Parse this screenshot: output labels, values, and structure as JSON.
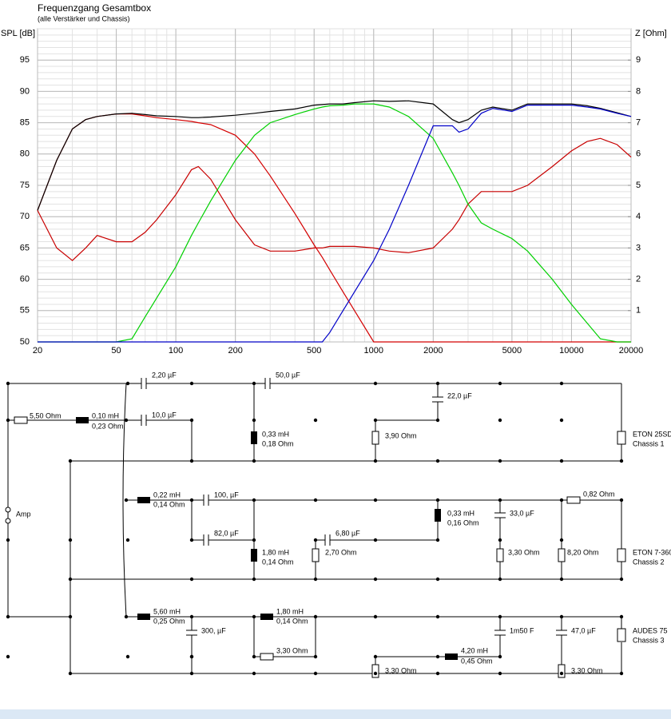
{
  "chart_data": {
    "type": "line",
    "title": "Frequenzgang Gesamtbox",
    "subtitle": "(alle Verstärker und Chassis)",
    "ylabel": "SPL [dB]",
    "y2label": "Z [Ohm]",
    "xscale": "log",
    "grid": true,
    "x": [
      20,
      25,
      30,
      35,
      40,
      50,
      60,
      70,
      80,
      100,
      120,
      130,
      150,
      200,
      250,
      300,
      400,
      500,
      550,
      600,
      700,
      800,
      1000,
      1200,
      1500,
      2000,
      2500,
      2700,
      3000,
      3500,
      4000,
      5000,
      6000,
      8000,
      10000,
      12000,
      14000,
      17000,
      20000
    ],
    "xlim": [
      20,
      20000
    ],
    "xticks": [
      20,
      50,
      100,
      200,
      500,
      1000,
      2000,
      5000,
      10000,
      20000
    ],
    "ylim": [
      50,
      100
    ],
    "yticks": [
      50,
      55,
      60,
      65,
      70,
      75,
      80,
      85,
      90,
      95
    ],
    "y2lim": [
      0,
      10
    ],
    "y2ticks": [
      1,
      2,
      3,
      4,
      5,
      6,
      7,
      8,
      9
    ],
    "series": [
      {
        "color": "#c80000",
        "axis": "y2",
        "values": [
          4.2,
          3.0,
          2.6,
          3.0,
          3.4,
          3.2,
          3.2,
          3.5,
          3.9,
          4.7,
          5.5,
          5.6,
          5.2,
          3.9,
          3.1,
          2.9,
          2.9,
          3.0,
          3.0,
          3.05,
          3.05,
          3.05,
          3.0,
          2.9,
          2.85,
          3.0,
          3.6,
          3.9,
          4.4,
          4.8,
          4.8,
          4.8,
          5.0,
          5.6,
          6.1,
          6.4,
          6.5,
          6.3,
          5.9
        ]
      },
      {
        "color": "#d40000",
        "values": [
          71,
          79,
          84,
          85.5,
          86,
          86.4,
          86.4,
          86.1,
          85.8,
          85.5,
          85.2,
          85,
          84.7,
          83,
          80,
          76.5,
          70.5,
          65.5,
          63.5,
          61.5,
          58,
          55,
          50,
          50,
          50,
          50,
          50,
          50,
          50,
          50,
          50,
          50,
          50,
          50,
          50,
          50,
          50,
          50,
          50
        ]
      },
      {
        "color": "#00d000",
        "values": [
          50,
          50,
          50,
          50,
          50,
          50,
          50.5,
          54,
          57,
          62,
          67,
          69,
          72.5,
          79,
          83,
          85,
          86.3,
          87.2,
          87.5,
          87.7,
          87.8,
          88,
          88,
          87.5,
          86,
          82.5,
          77,
          75,
          72,
          69,
          68,
          66.5,
          64.5,
          60,
          56,
          53,
          50.5,
          50,
          50
        ]
      },
      {
        "color": "#000000",
        "values": [
          71,
          79,
          84,
          85.5,
          86,
          86.4,
          86.5,
          86.3,
          86.1,
          86,
          85.8,
          85.8,
          85.9,
          86.2,
          86.5,
          86.8,
          87.2,
          87.8,
          87.9,
          88,
          88,
          88.2,
          88.5,
          88.4,
          88.5,
          88,
          85.5,
          85,
          85.5,
          87,
          87.5,
          87,
          88,
          88,
          88,
          87.7,
          87.3,
          86.6,
          86
        ]
      },
      {
        "color": "#0000c8",
        "values": [
          50,
          50,
          50,
          50,
          50,
          50,
          50,
          50,
          50,
          50,
          50,
          50,
          50,
          50,
          50,
          50,
          50,
          50,
          50,
          51.5,
          55,
          58,
          63,
          68,
          75,
          84.5,
          84.5,
          83.5,
          84,
          86.5,
          87.3,
          86.8,
          87.8,
          87.8,
          87.8,
          87.5,
          87.2,
          86.5,
          86
        ]
      }
    ]
  },
  "schematic": {
    "labels": [
      "5,50 Ohm",
      "0,10 mH",
      "0,23 Ohm",
      "2,20 µF",
      "10,0 µF",
      "50,0 µF",
      "0,33 mH",
      "0,18 Ohm",
      "3,90 Ohm",
      "22,0 µF",
      "ETON 25SD",
      "Chassis 1",
      "Amp",
      "0,22 mH",
      "0,14 Ohm",
      "100, µF",
      "82,0 µF",
      "1,80 mH",
      "0,14 Ohm",
      "6,80 µF",
      "2,70 Ohm",
      "0,33 mH",
      "0,16 Ohm",
      "33,0 µF",
      "3,30 Ohm",
      "0,82 Ohm",
      "8,20 Ohm",
      "ETON 7-360",
      "Chassis 2",
      "5,60 mH",
      "0,25 Ohm",
      "300, µF",
      "1,80 mH",
      "0,14 Ohm",
      "3,30 Ohm",
      "4,20 mH",
      "0,45 Ohm",
      "1m50 F",
      "47,0 µF",
      "3,30 Ohm",
      "3,30 Ohm",
      "AUDES 75",
      "Chassis 3"
    ]
  }
}
